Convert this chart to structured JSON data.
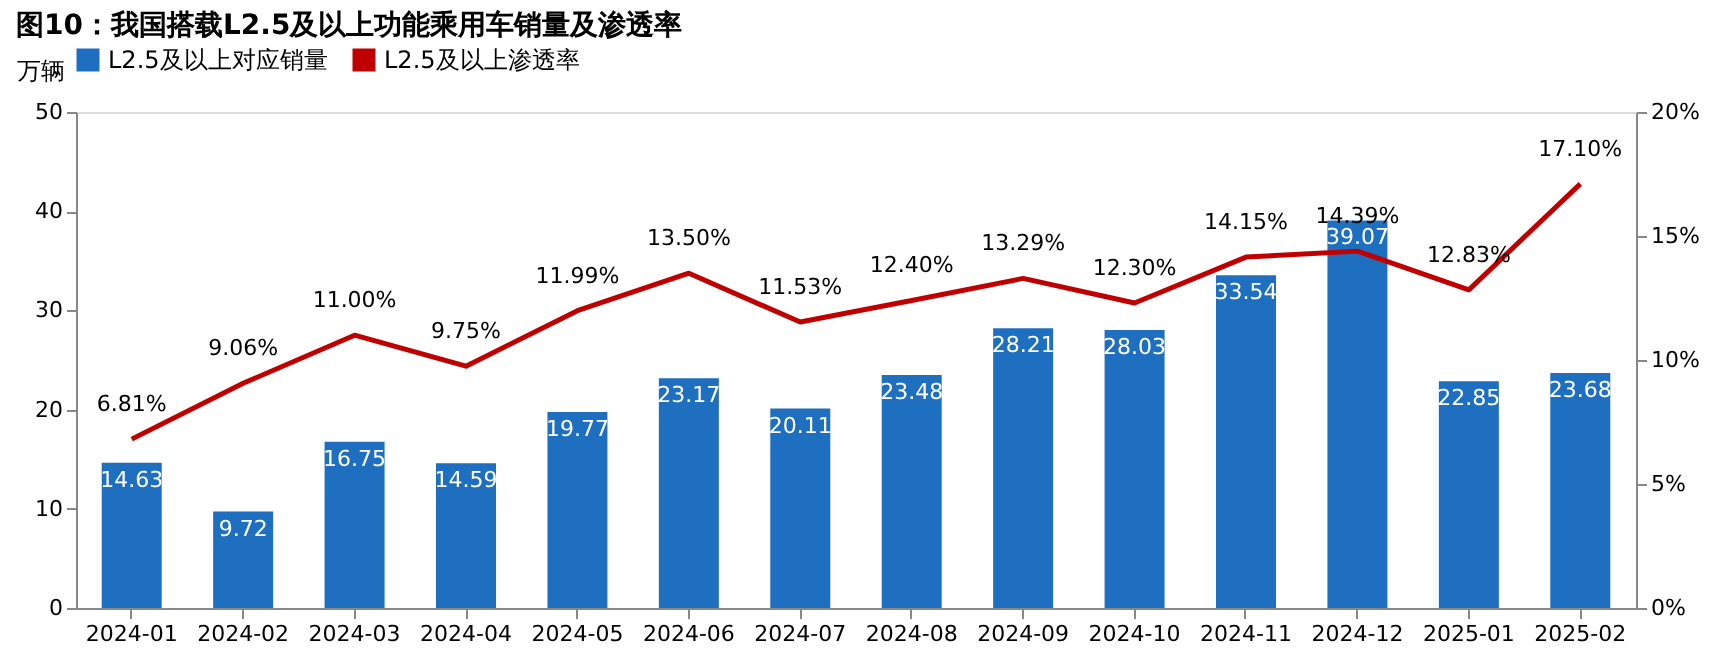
{
  "chart_data": {
    "type": "bar",
    "title": "图10：我国搭载L2.5及以上功能乘用车销量及渗透率",
    "ylabel": "万辆",
    "categories": [
      "2024-01",
      "2024-02",
      "2024-03",
      "2024-04",
      "2024-05",
      "2024-06",
      "2024-07",
      "2024-08",
      "2024-09",
      "2024-10",
      "2024-11",
      "2024-12",
      "2025-01",
      "2025-02"
    ],
    "series": [
      {
        "name": "L2.5及以上对应销量",
        "color": "#1f6fc0",
        "values": [
          14.63,
          9.72,
          16.75,
          14.59,
          19.77,
          23.17,
          20.11,
          23.48,
          28.21,
          28.03,
          33.54,
          39.07,
          22.85,
          23.68
        ],
        "value_labels": [
          "14.63",
          "9.72",
          "16.75",
          "14.59",
          "19.77",
          "23.17",
          "20.11",
          "23.48",
          "28.21",
          "28.03",
          "33.54",
          "39.07",
          "22.85",
          "23.68"
        ]
      },
      {
        "name": "L2.5及以上渗透率",
        "type": "line",
        "axis": "y2",
        "color": "#c00000",
        "values": [
          6.81,
          9.06,
          11.0,
          9.75,
          11.99,
          13.5,
          11.53,
          12.4,
          13.29,
          12.3,
          14.15,
          14.39,
          12.83,
          17.1
        ],
        "value_labels": [
          "6.81%",
          "9.06%",
          "11.00%",
          "9.75%",
          "11.99%",
          "13.50%",
          "11.53%",
          "12.40%",
          "13.29%",
          "12.30%",
          "14.15%",
          "14.39%",
          "12.83%",
          "17.10%"
        ]
      }
    ],
    "ylim": [
      0,
      50
    ],
    "yticks": [
      0,
      10,
      20,
      30,
      40,
      50
    ],
    "y2lim": [
      0,
      20
    ],
    "y2ticks": [
      {
        "value": 0,
        "label": "0%"
      },
      {
        "value": 5,
        "label": "5%"
      },
      {
        "value": 10,
        "label": "10%"
      },
      {
        "value": 15,
        "label": "15%"
      },
      {
        "value": 20,
        "label": "20%"
      }
    ],
    "legend": "top",
    "grid": false,
    "marker": "none",
    "line_style": "solid"
  }
}
